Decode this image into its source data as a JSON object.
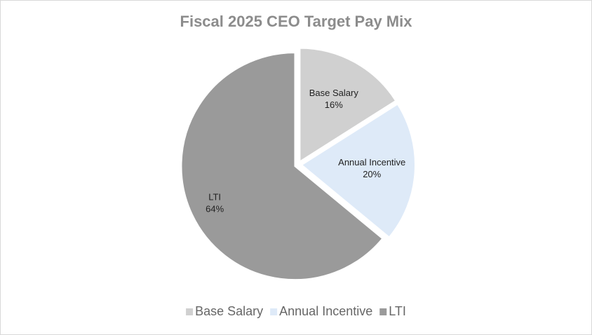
{
  "chart_data": {
    "type": "pie",
    "title": "Fiscal 2025  CEO Target Pay Mix",
    "categories": [
      "Base Salary",
      "Annual Incentive",
      "LTI"
    ],
    "values": [
      16,
      20,
      64
    ],
    "value_labels": [
      "16%",
      "20%",
      "64%"
    ],
    "colors": [
      "#d0d0d0",
      "#deeaf8",
      "#9a9a9a"
    ],
    "legend": "bottom"
  }
}
